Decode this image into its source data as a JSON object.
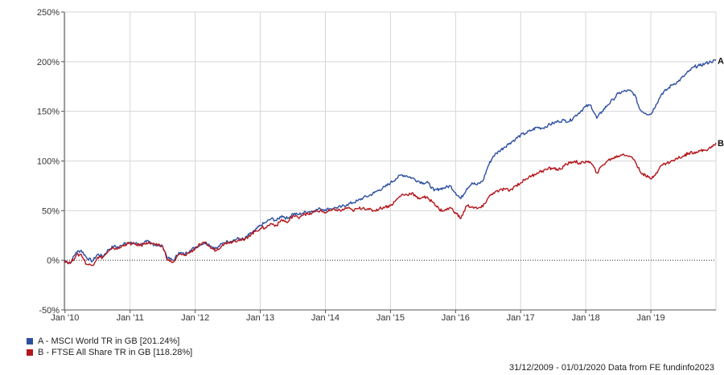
{
  "chart_data": {
    "type": "line",
    "ylim": [
      -50,
      250
    ],
    "y_ticks": [
      "-50%",
      "0%",
      "50%",
      "100%",
      "150%",
      "200%",
      "250%"
    ],
    "y_tick_values": [
      -50,
      0,
      50,
      100,
      150,
      200,
      250
    ],
    "x_range": [
      2009.99,
      2020.0
    ],
    "x_ticks": [
      "Jan '10",
      "Jan '11",
      "Jan '12",
      "Jan '13",
      "Jan '14",
      "Jan '15",
      "Jan '16",
      "Jan '17",
      "Jan '18",
      "Jan '19"
    ],
    "x_tick_values": [
      2010.0,
      2011.0,
      2012.0,
      2013.0,
      2014.0,
      2015.0,
      2016.0,
      2017.0,
      2018.0,
      2019.0
    ],
    "grid": true,
    "zero_line": true,
    "series": [
      {
        "name": "A - MSCI World TR in GB [201.24%]",
        "end_label": "A",
        "color": "#2d4fa0",
        "x": [
          2009.99,
          2010.08,
          2010.17,
          2010.25,
          2010.33,
          2010.42,
          2010.5,
          2010.58,
          2010.67,
          2010.75,
          2010.83,
          2010.92,
          2011.0,
          2011.08,
          2011.17,
          2011.25,
          2011.33,
          2011.42,
          2011.5,
          2011.58,
          2011.67,
          2011.75,
          2011.83,
          2011.92,
          2012.0,
          2012.08,
          2012.17,
          2012.25,
          2012.33,
          2012.42,
          2012.5,
          2012.58,
          2012.67,
          2012.75,
          2012.83,
          2012.92,
          2013.0,
          2013.08,
          2013.17,
          2013.25,
          2013.33,
          2013.42,
          2013.5,
          2013.58,
          2013.67,
          2013.75,
          2013.83,
          2013.92,
          2014.0,
          2014.08,
          2014.17,
          2014.25,
          2014.33,
          2014.42,
          2014.5,
          2014.58,
          2014.67,
          2014.75,
          2014.83,
          2014.92,
          2015.0,
          2015.08,
          2015.17,
          2015.25,
          2015.33,
          2015.42,
          2015.5,
          2015.58,
          2015.67,
          2015.75,
          2015.83,
          2015.92,
          2016.0,
          2016.08,
          2016.17,
          2016.25,
          2016.33,
          2016.42,
          2016.5,
          2016.58,
          2016.67,
          2016.75,
          2016.83,
          2016.92,
          2017.0,
          2017.08,
          2017.17,
          2017.25,
          2017.33,
          2017.42,
          2017.5,
          2017.58,
          2017.67,
          2017.75,
          2017.83,
          2017.92,
          2018.0,
          2018.08,
          2018.17,
          2018.25,
          2018.33,
          2018.42,
          2018.5,
          2018.58,
          2018.67,
          2018.75,
          2018.83,
          2018.92,
          2019.0,
          2019.08,
          2019.17,
          2019.25,
          2019.33,
          2019.42,
          2019.5,
          2019.58,
          2019.67,
          2019.75,
          2019.83,
          2019.92,
          2020.0
        ],
        "values": [
          0,
          -3,
          8,
          10,
          3,
          -1,
          6,
          4,
          11,
          14,
          13,
          18,
          17,
          17,
          16,
          19,
          17,
          15,
          14,
          2,
          0,
          8,
          6,
          10,
          13,
          16,
          18,
          14,
          12,
          17,
          19,
          20,
          22,
          21,
          26,
          30,
          35,
          38,
          42,
          40,
          45,
          42,
          47,
          46,
          48,
          49,
          50,
          52,
          51,
          52,
          53,
          54,
          56,
          58,
          60,
          63,
          65,
          68,
          71,
          74,
          78,
          82,
          86,
          85,
          83,
          80,
          78,
          78,
          70,
          72,
          73,
          75,
          68,
          62,
          72,
          78,
          76,
          80,
          95,
          105,
          110,
          114,
          118,
          122,
          126,
          128,
          131,
          134,
          133,
          136,
          138,
          140,
          141,
          140,
          145,
          150,
          155,
          156,
          143,
          150,
          156,
          162,
          168,
          170,
          171,
          167,
          152,
          148,
          147,
          157,
          168,
          172,
          177,
          180,
          185,
          190,
          195,
          196,
          198,
          200,
          201.24
        ]
      },
      {
        "name": "B - FTSE All Share TR in GB [118.28%]",
        "end_label": "B",
        "color": "#b3161b",
        "x": [
          2009.99,
          2010.08,
          2010.17,
          2010.25,
          2010.33,
          2010.42,
          2010.5,
          2010.58,
          2010.67,
          2010.75,
          2010.83,
          2010.92,
          2011.0,
          2011.08,
          2011.17,
          2011.25,
          2011.33,
          2011.42,
          2011.5,
          2011.58,
          2011.67,
          2011.75,
          2011.83,
          2011.92,
          2012.0,
          2012.08,
          2012.17,
          2012.25,
          2012.33,
          2012.42,
          2012.5,
          2012.58,
          2012.67,
          2012.75,
          2012.83,
          2012.92,
          2013.0,
          2013.08,
          2013.17,
          2013.25,
          2013.33,
          2013.42,
          2013.5,
          2013.58,
          2013.67,
          2013.75,
          2013.83,
          2013.92,
          2014.0,
          2014.08,
          2014.17,
          2014.25,
          2014.33,
          2014.42,
          2014.5,
          2014.58,
          2014.67,
          2014.75,
          2014.83,
          2014.92,
          2015.0,
          2015.08,
          2015.17,
          2015.25,
          2015.33,
          2015.42,
          2015.5,
          2015.58,
          2015.67,
          2015.75,
          2015.83,
          2015.92,
          2016.0,
          2016.08,
          2016.17,
          2016.25,
          2016.33,
          2016.42,
          2016.5,
          2016.58,
          2016.67,
          2016.75,
          2016.83,
          2016.92,
          2017.0,
          2017.08,
          2017.17,
          2017.25,
          2017.33,
          2017.42,
          2017.5,
          2017.58,
          2017.67,
          2017.75,
          2017.83,
          2017.92,
          2018.0,
          2018.08,
          2018.17,
          2018.25,
          2018.33,
          2018.42,
          2018.5,
          2018.58,
          2018.67,
          2018.75,
          2018.83,
          2018.92,
          2019.0,
          2019.08,
          2019.17,
          2019.25,
          2019.33,
          2019.42,
          2019.5,
          2019.58,
          2019.67,
          2019.75,
          2019.83,
          2019.92,
          2020.0
        ],
        "values": [
          0,
          -3,
          5,
          6,
          -4,
          -5,
          3,
          3,
          9,
          12,
          12,
          16,
          17,
          16,
          15,
          18,
          17,
          15,
          14,
          0,
          -2,
          6,
          5,
          8,
          12,
          16,
          17,
          12,
          10,
          16,
          18,
          19,
          21,
          20,
          25,
          29,
          32,
          33,
          37,
          35,
          41,
          38,
          45,
          43,
          47,
          46,
          49,
          50,
          48,
          50,
          51,
          50,
          53,
          50,
          52,
          53,
          51,
          50,
          52,
          54,
          55,
          60,
          66,
          66,
          68,
          62,
          64,
          62,
          58,
          51,
          50,
          53,
          48,
          42,
          55,
          54,
          52,
          54,
          63,
          68,
          70,
          72,
          70,
          75,
          78,
          82,
          85,
          88,
          90,
          92,
          93,
          91,
          95,
          98,
          100,
          97,
          100,
          98,
          88,
          95,
          100,
          103,
          105,
          107,
          105,
          101,
          90,
          85,
          82,
          88,
          96,
          98,
          100,
          103,
          105,
          108,
          109,
          110,
          111,
          113,
          118.28
        ]
      }
    ]
  },
  "footer": {
    "source": "31/12/2009 - 01/01/2020 Data from FE fundinfo2023"
  }
}
